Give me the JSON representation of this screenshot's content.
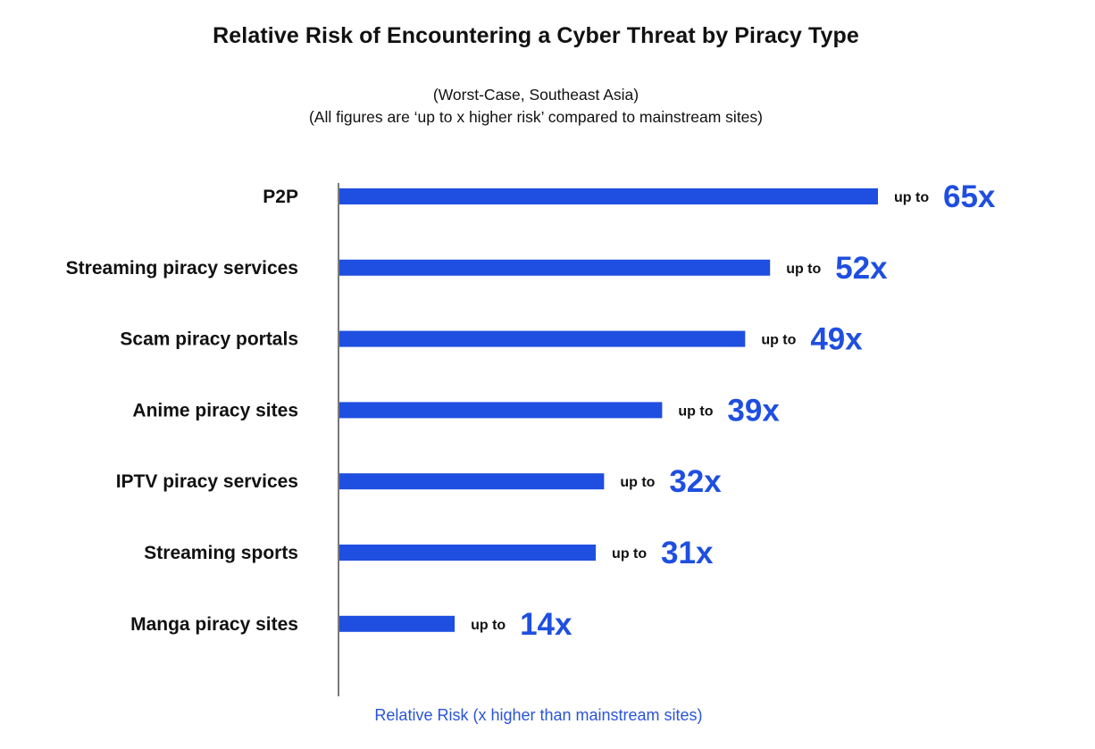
{
  "chart_data": {
    "type": "bar",
    "orientation": "horizontal",
    "title": "Relative Risk of Encountering a Cyber Threat by Piracy Type",
    "subtitle_lines": [
      "(Worst-Case, Southeast Asia)",
      "(All figures are ‘up to x higher risk’ compared to mainstream sites)"
    ],
    "categories": [
      "P2P",
      "Streaming piracy services",
      "Scam piracy portals",
      "Anime piracy sites",
      "IPTV piracy services",
      "Streaming sports",
      "Manga piracy sites"
    ],
    "values": [
      65,
      52,
      49,
      39,
      32,
      31,
      14
    ],
    "data_labels": [
      "65x",
      "52x",
      "49x",
      "39x",
      "32x",
      "31x",
      "14x"
    ],
    "label_prefix": "up to",
    "xlabel": "Relative Risk (x higher than mainstream sites)",
    "ylabel": "",
    "xlim": [
      0,
      65
    ],
    "grid": false,
    "legend": "none",
    "colors": {
      "bar": "#1f4fe0",
      "value_label": "#1f4fe0",
      "axis_title": "#2a55d6",
      "axis_line": "#222222"
    }
  }
}
